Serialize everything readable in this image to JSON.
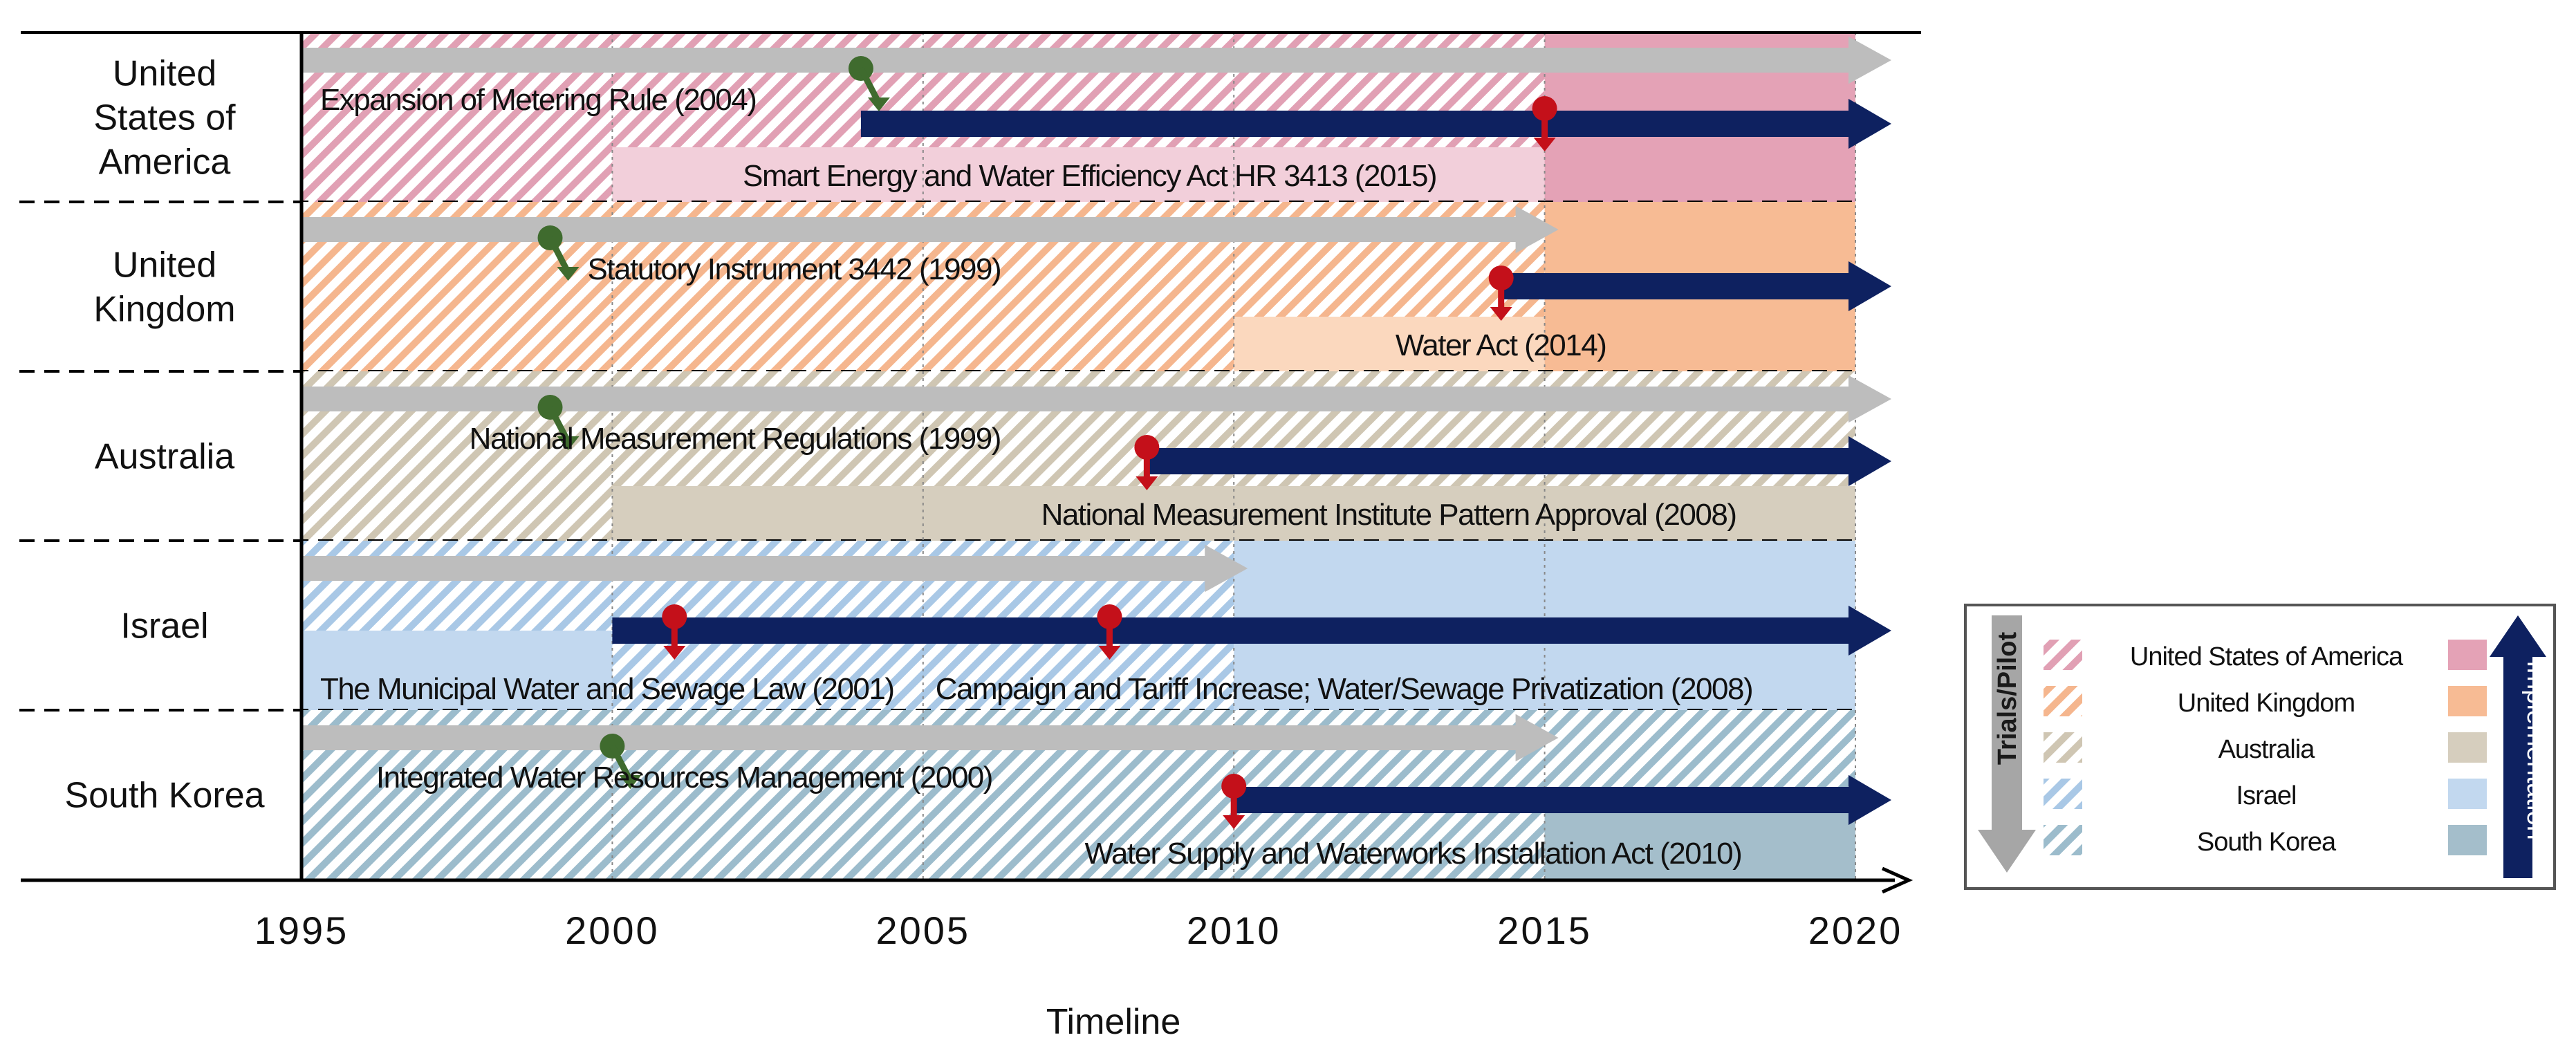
{
  "chart_data": {
    "type": "timeline",
    "title": "",
    "xlabel": "Timeline",
    "ylabel": "",
    "xlim": [
      1995,
      2020
    ],
    "ticks": [
      1995,
      2000,
      2005,
      2010,
      2015,
      2020
    ],
    "grid": true,
    "legend_position": "right",
    "countries": [
      {
        "key": "usa",
        "label": "United States of America",
        "row_label": [
          "United",
          "States of",
          "America"
        ],
        "trial_color": "#E1A0B4",
        "impl_color": "#E4A2B6",
        "impl_light": "#F2CFDA",
        "hatch_to": 2015,
        "light_from": 2000,
        "light_to": 2015,
        "solid_from": 2015,
        "trial_arrows": [
          {
            "from": 1995,
            "to": 2020
          }
        ],
        "impl_arrows": [
          {
            "from": 2004,
            "to": 2020
          }
        ],
        "events": [
          {
            "label": "Expansion of Metering Rule (2004)",
            "year": 2004,
            "kind": "trial",
            "label_start": 1995.3
          },
          {
            "label": "Smart Energy and Water Efficiency Act HR 3413 (2015)",
            "year": 2015,
            "kind": "impl",
            "label_start": 2002.1
          }
        ]
      },
      {
        "key": "uk",
        "label": "United Kingdom",
        "row_label": [
          "United",
          "Kingdom"
        ],
        "trial_color": "#F5B68E",
        "impl_color": "#F7BB94",
        "impl_light": "#FBD8BE",
        "hatch_to": 2015,
        "light_from": 2010,
        "light_to": 2015,
        "solid_from": 2015,
        "trial_arrows": [
          {
            "from": 1995,
            "to": 2015
          }
        ],
        "impl_arrows": [
          {
            "from": 2014.3,
            "to": 2020
          }
        ],
        "events": [
          {
            "label": "Statutory Instrument 3442 (1999)",
            "year": 1999,
            "kind": "trial",
            "label_start": 1999.6
          },
          {
            "label": "Water Act (2014)",
            "year": 2014.3,
            "kind": "impl",
            "label_start": 2012.6
          }
        ]
      },
      {
        "key": "australia",
        "label": "Australia",
        "row_label": [
          "Australia"
        ],
        "trial_color": "#CFC6B3",
        "impl_color": "#D6CEBE",
        "impl_light": "#D6CEBE",
        "hatch_to": 2020,
        "light_from": 2000,
        "light_to": 2020,
        "solid_from": 2020,
        "trial_arrows": [
          {
            "from": 1995,
            "to": 2020
          }
        ],
        "impl_arrows": [
          {
            "from": 2008.6,
            "to": 2020
          }
        ],
        "events": [
          {
            "label": "National Measurement Regulations (1999)",
            "year": 1999,
            "kind": "trial",
            "label_start": 1997.7
          },
          {
            "label": "National Measurement Institute Pattern Approval  (2008)",
            "year": 2008.6,
            "kind": "impl",
            "label_start": 2006.9
          }
        ]
      },
      {
        "key": "israel",
        "label": "Israel",
        "row_label": [
          "Israel"
        ],
        "trial_color": "#A9C8E6",
        "impl_color": "#C2D8EF",
        "impl_light": "#C2D8EF",
        "hatch_to": 2010,
        "light_from": 2010,
        "light_to": 2020,
        "solid_from": 2020,
        "trial_arrows": [
          {
            "from": 1995,
            "to": 2010
          }
        ],
        "impl_arrows": [
          {
            "from": 2000,
            "to": 2020
          }
        ],
        "events": [
          {
            "label": "The Municipal Water and Sewage Law (2001)",
            "year": 2001,
            "kind": "impl",
            "label_start": 1995.3
          },
          {
            "label": "Campaign and Tariff  Increase; Water/Sewage Privatization (2008)",
            "year": 2008,
            "kind": "impl",
            "label_start": 2005.2
          }
        ]
      },
      {
        "key": "south_korea",
        "label": "South Korea",
        "row_label": [
          "South Korea"
        ],
        "trial_color": "#9CBCCC",
        "impl_color": "#A4BECB",
        "impl_light": "#A4BECB",
        "hatch_to": 2020,
        "light_from": 2015,
        "light_to": 2020,
        "solid_from": 2020,
        "trial_arrows": [
          {
            "from": 1995,
            "to": 2015
          }
        ],
        "impl_arrows": [
          {
            "from": 2010,
            "to": 2020
          }
        ],
        "events": [
          {
            "label": "Integrated Water Resources Management (2000)",
            "year": 2000,
            "kind": "trial",
            "label_start": 1996.2
          },
          {
            "label": "Water Supply and Waterworks Installation Act (2010)",
            "year": 2010,
            "kind": "impl",
            "label_start": 2007.6
          }
        ]
      }
    ],
    "legend": {
      "trial_label": "Trials/Pilot",
      "impl_label": "Implementation",
      "entries": [
        "United States of America",
        "United Kingdom",
        "Australia",
        "Israel",
        "South Korea"
      ]
    }
  },
  "colors": {
    "trial_arrow": "#BDBDBD",
    "impl_arrow": "#0E2160",
    "trial_pin": "#3F6B2E",
    "impl_pin": "#C4101A",
    "axis": "#000000"
  }
}
